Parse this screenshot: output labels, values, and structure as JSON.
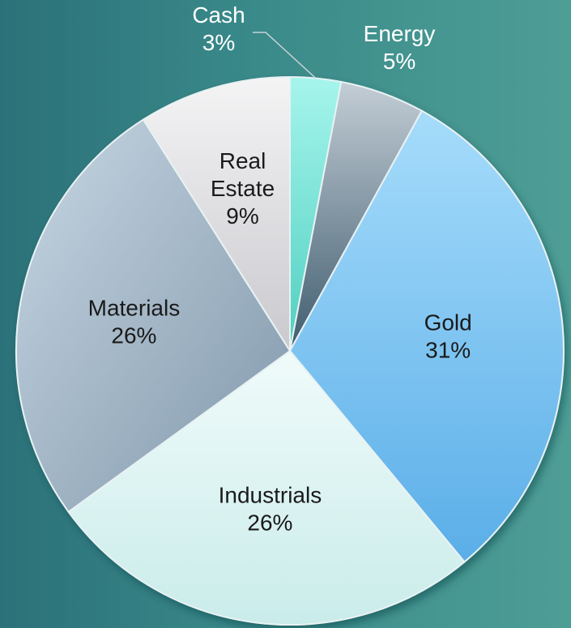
{
  "chart_data": {
    "type": "pie",
    "title": "",
    "categories": [
      "Cash",
      "Energy",
      "Gold",
      "Industrials",
      "Materials",
      "Real Estate"
    ],
    "values": [
      3,
      5,
      31,
      26,
      26,
      9
    ],
    "data_labels": [
      "3%",
      "5%",
      "31%",
      "26%",
      "26%",
      "9%"
    ],
    "colors": [
      "#7fe8dc",
      "#9eaebb",
      "#7cc3f0",
      "#d8f3f1",
      "#a9bccd",
      "#e4e4e6"
    ],
    "legend": "none",
    "labels_position": "inside (Cash and Energy outside)"
  }
}
